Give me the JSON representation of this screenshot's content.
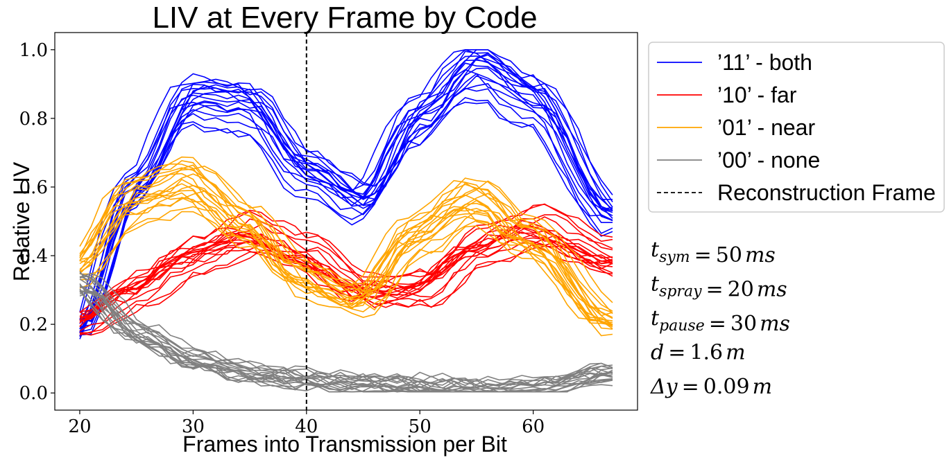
{
  "chart_data": {
    "type": "line",
    "title": "LIV at Every Frame by Code",
    "xlabel": "Frames into Transmission per Bit",
    "ylabel": "Relative LIV",
    "xlim": [
      17.8,
      69.2
    ],
    "ylim": [
      -0.05,
      1.05
    ],
    "xticks": [
      20,
      30,
      40,
      50,
      60
    ],
    "xtick_labels": [
      "20",
      "30",
      "40",
      "50",
      "60"
    ],
    "yticks": [
      0.0,
      0.2,
      0.4,
      0.6,
      0.8,
      1.0
    ],
    "ytick_labels": [
      "0.0",
      "0.2",
      "0.4",
      "0.6",
      "0.8",
      "1.0"
    ],
    "grid": false,
    "legend_position": "outside-right-top",
    "x_range": [
      20,
      67
    ],
    "series": [
      {
        "name": "’11’ - both",
        "color": "#0000ff",
        "count": 18,
        "x": [
          20,
          25,
          30,
          35,
          40,
          45,
          50,
          55,
          60,
          67
        ],
        "values": [
          0.18,
          0.6,
          0.86,
          0.84,
          0.65,
          0.56,
          0.8,
          0.95,
          0.86,
          0.52
        ]
      },
      {
        "name": "’10’ - far",
        "color": "#ff0000",
        "count": 18,
        "x": [
          20,
          25,
          30,
          35,
          40,
          45,
          50,
          55,
          60,
          67
        ],
        "values": [
          0.2,
          0.3,
          0.4,
          0.46,
          0.4,
          0.3,
          0.3,
          0.42,
          0.48,
          0.39
        ]
      },
      {
        "name": "’01’ - near",
        "color": "#ffa500",
        "count": 18,
        "x": [
          20,
          25,
          30,
          35,
          40,
          45,
          50,
          55,
          60,
          67
        ],
        "values": [
          0.35,
          0.55,
          0.6,
          0.48,
          0.32,
          0.26,
          0.45,
          0.55,
          0.44,
          0.2
        ]
      },
      {
        "name": "’00’ - none",
        "color": "#808080",
        "count": 18,
        "x": [
          20,
          25,
          30,
          35,
          40,
          45,
          50,
          55,
          60,
          67
        ],
        "values": [
          0.33,
          0.18,
          0.1,
          0.06,
          0.04,
          0.03,
          0.02,
          0.015,
          0.015,
          0.06
        ]
      }
    ],
    "reference_line": {
      "name": "Reconstruction Frame",
      "x": 40,
      "style": "dashed",
      "color": "#000000"
    },
    "annotations": [
      {
        "symbol": "t",
        "sub": "sym",
        "value": "50",
        "unit": "ms"
      },
      {
        "symbol": "t",
        "sub": "spray",
        "value": "20",
        "unit": "ms"
      },
      {
        "symbol": "t",
        "sub": "pause",
        "value": "30",
        "unit": "ms"
      },
      {
        "symbol": "d",
        "sub": "",
        "value": "1.6",
        "unit": "m"
      },
      {
        "symbol": "Δy",
        "sub": "",
        "value": "0.09",
        "unit": "m"
      }
    ]
  }
}
